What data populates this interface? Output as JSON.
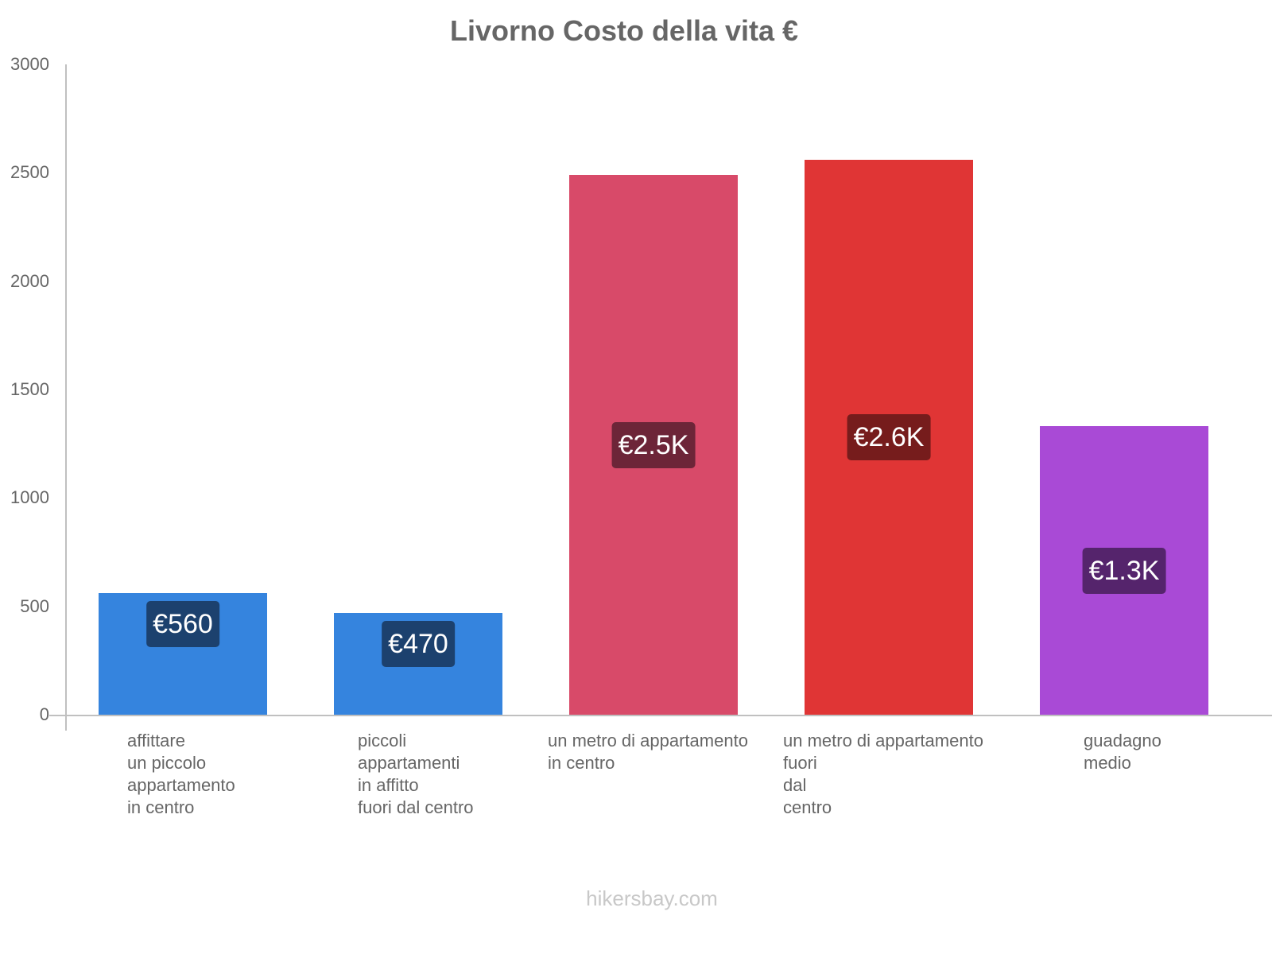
{
  "chart_data": {
    "type": "bar",
    "title": "Livorno Costo della vita €",
    "xlabel": "",
    "ylabel": "",
    "ylim": [
      0,
      3000
    ],
    "yticks": [
      0,
      500,
      1000,
      1500,
      2000,
      2500,
      3000
    ],
    "grid": false,
    "legend": null,
    "categories": [
      "affittare un piccolo appartamento in centro",
      "piccoli appartamenti in affitto fuori dal centro",
      "un metro di appartamento in centro",
      "un metro di appartamento fuori dal centro",
      "guadagno medio"
    ],
    "values": [
      560,
      470,
      2490,
      2560,
      1330
    ],
    "value_labels": [
      "€560",
      "€470",
      "€2.5K",
      "€2.6K",
      "€1.3K"
    ],
    "colors": [
      "#3584de",
      "#3584de",
      "#d84a69",
      "#e03535",
      "#a94ad6"
    ],
    "label_bg_colors": [
      "#1c416e",
      "#1c416e",
      "#6d2538",
      "#761c1c",
      "#55246c"
    ]
  },
  "title": "Livorno Costo della vita €",
  "y_ticks": [
    "0",
    "500",
    "1000",
    "1500",
    "2000",
    "2500",
    "3000"
  ],
  "x_labels": [
    "affittare\nun piccolo\nappartamento\nin centro",
    "piccoli\nappartamenti\nin affitto\nfuori dal centro",
    "un metro di appartamento\nin centro",
    "un metro di appartamento\nfuori\ndal\ncentro",
    "guadagno\nmedio"
  ],
  "watermark": "hikersbay.com"
}
